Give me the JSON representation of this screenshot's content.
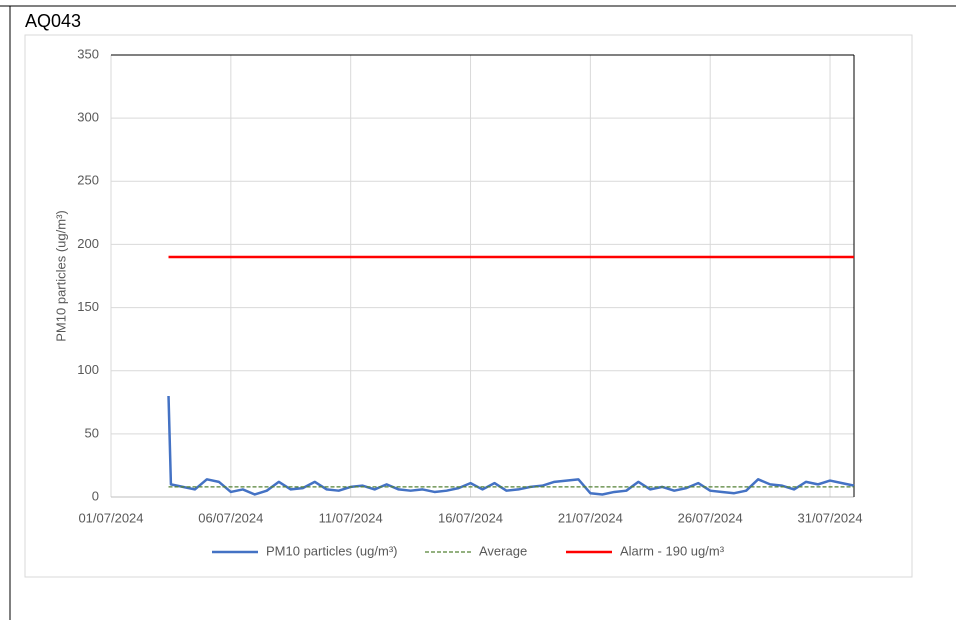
{
  "chart_data": {
    "type": "line",
    "title": "AQ043",
    "y_label": "PM10 particles (ug/m³)",
    "xlim": [
      45474,
      45505
    ],
    "xticks": [
      {
        "value": 45474,
        "label": "01/07/2024"
      },
      {
        "value": 45479,
        "label": "06/07/2024"
      },
      {
        "value": 45484,
        "label": "11/07/2024"
      },
      {
        "value": 45489,
        "label": "16/07/2024"
      },
      {
        "value": 45494,
        "label": "21/07/2024"
      },
      {
        "value": 45499,
        "label": "26/07/2024"
      },
      {
        "value": 45504,
        "label": "31/07/2024"
      }
    ],
    "ylim": [
      0,
      350
    ],
    "yticks": [
      0,
      50,
      100,
      150,
      200,
      250,
      300,
      350
    ],
    "grid": true,
    "legend": "bottom",
    "series": [
      {
        "name": "PM10 particles (ug/m³)",
        "color": "#4472c4",
        "style": "solid",
        "x": [
          45476.4,
          45476.5,
          45477,
          45477.5,
          45478,
          45478.5,
          45479,
          45479.5,
          45480,
          45480.5,
          45481,
          45481.5,
          45482,
          45482.5,
          45483,
          45483.5,
          45484,
          45484.5,
          45485,
          45485.5,
          45486,
          45486.5,
          45487,
          45487.5,
          45488,
          45488.5,
          45489,
          45489.5,
          45490,
          45490.5,
          45491,
          45491.5,
          45492,
          45492.5,
          45493,
          45493.5,
          45494,
          45494.5,
          45495,
          45495.5,
          45496,
          45496.5,
          45497,
          45497.5,
          45498,
          45498.5,
          45499,
          45499.5,
          45500,
          45500.5,
          45501,
          45501.5,
          45502,
          45502.5,
          45503,
          45503.5,
          45504,
          45504.5,
          45505
        ],
        "values": [
          80,
          10,
          8,
          6,
          14,
          12,
          4,
          6,
          2,
          5,
          12,
          6,
          7,
          12,
          6,
          5,
          8,
          9,
          6,
          10,
          6,
          5,
          6,
          4,
          5,
          7,
          11,
          6,
          11,
          5,
          6,
          8,
          9,
          12,
          13,
          14,
          3,
          2,
          4,
          5,
          12,
          6,
          8,
          5,
          7,
          11,
          5,
          4,
          3,
          5,
          14,
          10,
          9,
          6,
          12,
          10,
          13,
          11,
          9
        ]
      },
      {
        "name": "Average",
        "color": "#548235",
        "style": "dashed",
        "x": [
          45476.4,
          45505
        ],
        "values": [
          8,
          8
        ]
      },
      {
        "name": "Alarm - 190 ug/m³",
        "color": "#ff0000",
        "style": "solid",
        "x": [
          45476.4,
          45505
        ],
        "values": [
          190,
          190
        ]
      }
    ]
  }
}
